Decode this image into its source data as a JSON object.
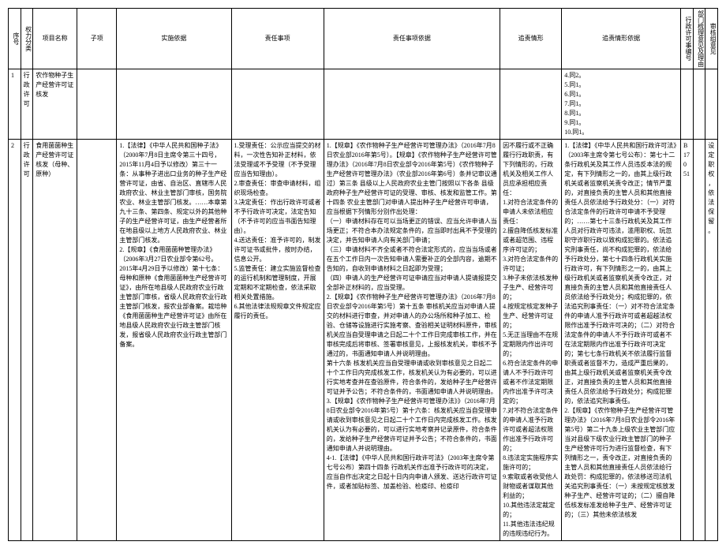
{
  "headers": {
    "seq": "序号",
    "cat": "权力分类",
    "name": "项目名称",
    "sub": "子项",
    "basis": "实施依据",
    "resp": "责任事项",
    "respbasis": "责任事项依据",
    "case": "追责情形",
    "casebasis": "追责情形依据",
    "permit": "行政许可事编号",
    "dept": "部门梳理意见及理由",
    "audit": "审核组意见"
  },
  "row1": {
    "seq": "1",
    "cat": "行政许可",
    "name": "农作物种子生产经营许可证核发",
    "sub": "",
    "basis": "",
    "resp": "",
    "respbasis": "",
    "case": "",
    "casebasis": "4.同2。\n5.同1。\n6.同1。\n7.同1。\n8.同1。\n9.同1。\n10.同1。",
    "permit": "",
    "dept": "",
    "audit": ""
  },
  "row2": {
    "seq": "2",
    "cat": "行政许可",
    "name": "食用菌菌种生产经营许可证核发（母种、原种）",
    "sub": "",
    "basis": "1.【法律】《中华人民共和国种子法》（2000年7月8日主席令第三十四号，2015年11月4日予以修改）第三十一条：从事种子进出口业务的种子生产经营许可证，由省、自治区、直辖市人民政府农业、林业主管部门审核，国务院农业、林业主管部门核发。……本章第九十三条、第四条、规定以外的其他种子的生产经营许可证，由生产经营者所在地县级以上地方人民政府农业、林业主管部门核发。\n2.【规章】《食用菌菌种管理办法》（2006年3月27日农业部令第62号。2015年4月29日予以修改）第十七条：母种和原种《食用菌菌种生产经营许可证》，由所在地县级人民政府农业行政主管部门审核，省级人民政府农业行政主管部门核发，报农业部备案。栽培种《食用菌菌种生产经营许可证》由所在地县级人民政府农业行政主管部门核发，报省级人民政府农业行政主管部门备案。",
    "resp": "1.受理责任：公示应当提交的材料，一次性告知补正材料，依法受理或不予受理（不予受理应当告知理由）。\n2.审查责任：审查申请材料，组织现场检查。\n3.决定责任：作出行政许可或者不予行政许可决定，法定告知（不予许可的应当书面告知理由）。\n4.送达责任：准予许可的，制发许可证书或批件，按时办结，信息公开。\n5.监管责任：建立实施监督检查的运行机制和管理制度，开展定期和不定期检查，依法采取相关处置措施。\n6.其他法律法规规章文件规定应履行的责任。",
    "respbasis": "1.【规章】《农作物种子生产经营许可管理办法》（2016年7月8日农业部2016年第5号）。【规章】《农作物种子生产经营许可管理办法》（2016年7月8日农业部令2016年第5号）《农作物种子生产经营许可管理办法》（农业部2016年第6号）条并记审议通过）第三条 县级以上人民政府农业主管门按照以下各条  县级政府种子生产经营许可证的受理、审核、核发和监管工作。第十四条 农业主管部门对申请人提出种子生产经营许可申请，应当根据下列情形分别作出处理：\n（一）申请材料存在可以当场更正的错误、应当允许申请人当场更正；不符合本办法规定条件的，应当即时出具不予受理的决定，并告知申请人向有关部门申请；\n（三）申请材料不齐全或者不符合法定形式的，应当当场或者在五个工作日内一次告知申请人需要补正的全部内容，逾期不告知的，自收到申请材料之日起即为受理；\n（四）申请人的生产经营许可证申请应当对申请人提请报提交全部补正材料的，应当受理。\n2.【规章】《农作物种子生产经营许可管理办法》（2016年7月8日农业部令2016年第5号）第十五条  审核机关应当对申请人提交的材料进行审查，并对申请人的办公场所和种子加工、检验、仓储等设施进行实施考察、查验相关证明材料原件，审核机关应当自受理申请之日起二十个工作日完成审核工作，并在审核完成后将审核、签署审核意见，上报核发机关，审核不予通过的，书面通知申请人并说明理由。\n第十六条  核发机关应当自受理申请或收到审核意见之日起二十个工作日内完成核发工作，核发机关认为有必要的，可以进行实地考查并在查验原件，符合条件的，发给种子生产经营许可证并予公告；不符合条件的，书面通知申请人并说明理由。\n3.【规章】《农作物种子生产经营许可管理办法》》（2016年7月8日农业部令2016年第5号）第十六条：核发机关应当自受理申请或收到审核意见之日起二十个工作日内完成核发工作。核发机关认为有必要的，可以进行实地考察并记录原件，符合条件的，发给种子生产经营许可证并予公告；不符合条件的，书面通知申请人并说明理由。\n4-1.【法律】《中华人民共和国行政许可法》（2003年主席令第七号公布）第四十四条  行政机关作出准予行政许可的决定，应当自作出决定之日起十日内向申请人颁发、送达行政许可证件，或者加贴标签、加盖检验、检疫印、检疫印",
    "case": "因不履行或不正确履行行政职责，有下列情形的，行政机关及相关工作人员应承担相应责任：\n1.对符合法定条件的申请人未依法相应责任：\n2.擅自降低核发标准或者超范围、违程序许可证的；\n3.对符合法定条件的许可证；\n3.种子未依法核发种子生产、经营许可的；\n4.按规定核定发种子生产、经营许可证的；\n5.无正当理由不在规定期限内作出许可的；\n6.符合法定条件的申请人不予行政许可或者不作法定期限内作出准予许可决定的；\n7.对不符合法定条件的申请人准予行政许可或者超法权限作出准予行政许可的；\n8.违法定实施程序实施许可的；\n9.索取或者收受他人财物或者谋取其他利益的；\n10.其他违法定裁定的；\n11.其他违法违纪规的违规违纪行为。",
    "casebasis": "1.【法律】《中华人民共和国行政许可法》（2003年主席令第七号公布）：第七十二条行政机关及其工作人员违反本法的规定，有下列情形之一的，由其上级行政机关或者监察机关责令改正；情节严重的，对直接负责的主管人员和其他直接责任人员依法给予行政处分：（一）对符合法定条件的行政许可申请不予受理的；……第七十三条行政机关及其工作人员对行政许可违法，滥用职权、玩忽职守诈职行政以致构成犯罪的。依法追究刑事责任，尚不构成犯罪的，依法给予行政处分，第七十四条行政机关实施行政许可，有下列情形之一的，由其上级行政机关或者监察机关责令改正，对直接负责的主管人员和其他直接责任人员依法给予行政处分；构成犯罪的，依法追究刑事责任：（一）对不符合法定条件的申请人准予行政许可或者超越法权限作出准予行政许可决的；（二）对符合法定条件的申请人不予行政许可或者不在法定期限内作出准予行政许可决定的；第七七条行政机关不依法履行监督职责或者监督不力，造成严重后果的，由其上级行政机关或者监察机关责令改正，对直接负责的主管人员和其他直接责任人员依法给予行政处分；构成犯罪的，依法追究刑事责任。\n2.【规章】《农作物种子生产经营许可管理办法》（2016年7月8日农业部令2016年第5号）第二十九条上级农业主管部门应当对县级下级农业行政主管部门的种子生产经营许可行为进行监督检查，有下列情形之一，责令改正，对直接负责的主管人员和其他直接责任人员依法给行政处罚：构成犯罪的，依法移送司法机关追究刑事责任：（一）未按规定核放发种子生产、经营许可证的；（二）擅自降低核发标准发给种子生产、经营许可证的；（三）其他未依法核发",
    "permit": "B170 51",
    "dept": "",
    "audit": "设定职权，依法保留。"
  }
}
